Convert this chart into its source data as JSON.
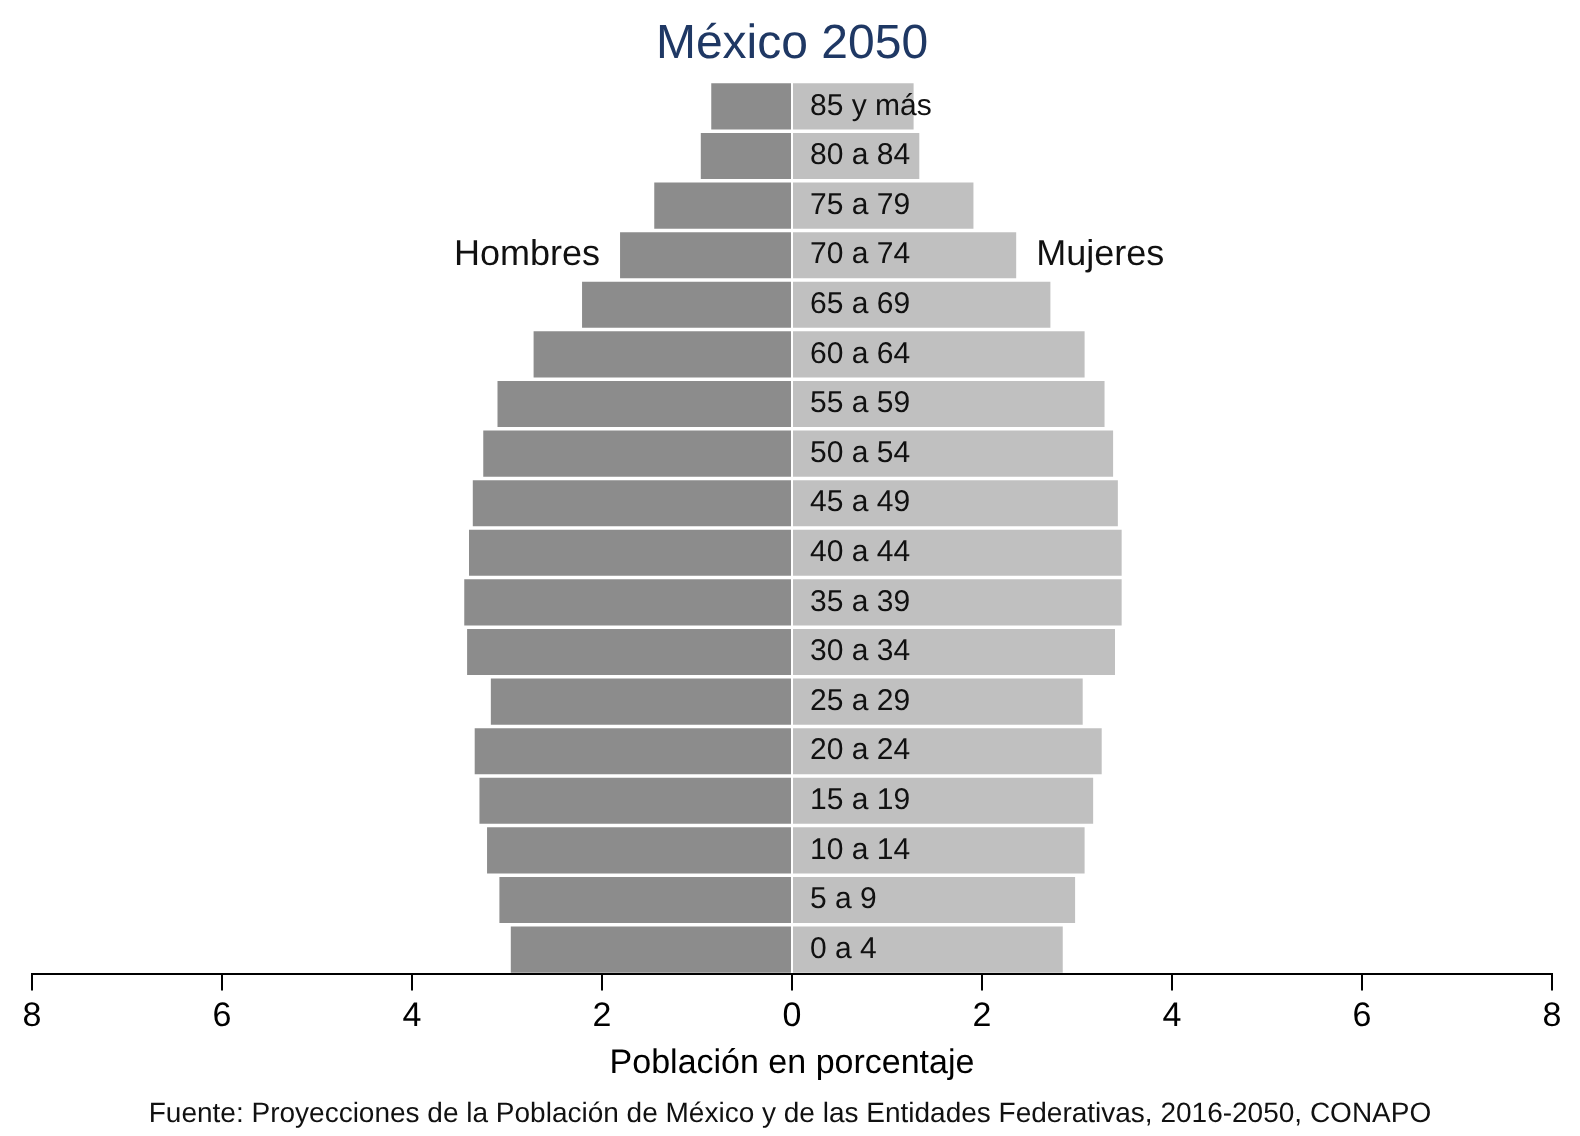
{
  "chart_data": {
    "type": "bar",
    "orientation": "horizontal",
    "stacked": true,
    "title": "México 2050",
    "xlabel": "Población en porcentaje",
    "categories": [
      "85 y más",
      "80 a 84",
      "75 a 79",
      "70 a 74",
      "65 a 69",
      "60 a 64",
      "55 a 59",
      "50 a 54",
      "45 a 49",
      "40 a 44",
      "35 a 39",
      "30 a 34",
      "25 a 29",
      "20 a 24",
      "15 a 19",
      "10 a 14",
      "5 a 9",
      "0 a 4"
    ],
    "series": [
      {
        "name": "Hombres",
        "color": "#8c8c8c",
        "values": [
          -0.85,
          -0.96,
          -1.45,
          -1.81,
          -2.21,
          -2.72,
          -3.1,
          -3.25,
          -3.36,
          -3.4,
          -3.45,
          -3.42,
          -3.17,
          -3.34,
          -3.29,
          -3.21,
          -3.08,
          -2.96
        ]
      },
      {
        "name": "Mujeres",
        "color": "#c0c0c0",
        "values": [
          1.28,
          1.34,
          1.91,
          2.36,
          2.72,
          3.08,
          3.29,
          3.38,
          3.43,
          3.47,
          3.47,
          3.4,
          3.06,
          3.26,
          3.17,
          3.08,
          2.98,
          2.85
        ]
      }
    ],
    "xlim": [
      -8,
      8
    ],
    "xticks": [
      {
        "value": -8,
        "label": "8"
      },
      {
        "value": -6,
        "label": "6"
      },
      {
        "value": -4,
        "label": "4"
      },
      {
        "value": -2,
        "label": "2"
      },
      0,
      2,
      4,
      6,
      8
    ],
    "grid": false,
    "legend": false,
    "annotations": [
      "Fuente: Proyecciones de la Población de México y de las Entidades Federativas, 2016-2050, CONAPO"
    ]
  }
}
